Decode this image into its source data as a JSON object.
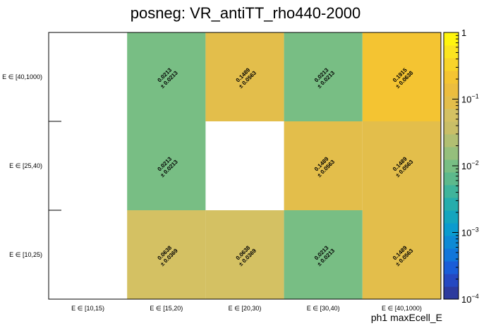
{
  "chart_data": {
    "type": "heatmap",
    "title": "posneg: VR_antiTT_rho440-2000",
    "xlabel": "ph1 maxEcell_E",
    "ylabel": "",
    "x_categories": [
      "E ∈ [10,15)",
      "E ∈ [15,20)",
      "E ∈ [20,30)",
      "E ∈ [30,40)",
      "E ∈ [40,1000)"
    ],
    "y_categories": [
      "E ∈ [10,25)",
      "E ∈ [25,40)",
      "E ∈ [40,1000)"
    ],
    "z_scale": "log",
    "zlim": [
      0.0001,
      1
    ],
    "z_ticks": [
      {
        "value": 1,
        "base": "1",
        "exp": ""
      },
      {
        "value": 0.1,
        "base": "10",
        "exp": "−1"
      },
      {
        "value": 0.01,
        "base": "10",
        "exp": "−2"
      },
      {
        "value": 0.001,
        "base": "10",
        "exp": "−3"
      },
      {
        "value": 0.0001,
        "base": "10",
        "exp": "−4"
      }
    ],
    "cells": [
      {
        "x": 1,
        "y": 0,
        "value": 0.0638,
        "label": "0.0638",
        "error": "± 0.0369"
      },
      {
        "x": 2,
        "y": 0,
        "value": 0.0638,
        "label": "0.0638",
        "error": "± 0.0369"
      },
      {
        "x": 3,
        "y": 0,
        "value": 0.0213,
        "label": "0.0213",
        "error": "± 0.0213"
      },
      {
        "x": 4,
        "y": 0,
        "value": 0.1489,
        "label": "0.1489",
        "error": "± 0.0563"
      },
      {
        "x": 1,
        "y": 1,
        "value": 0.0213,
        "label": "0.0213",
        "error": "± 0.0213"
      },
      {
        "x": 3,
        "y": 1,
        "value": 0.1489,
        "label": "0.1489",
        "error": "± 0.0563"
      },
      {
        "x": 4,
        "y": 1,
        "value": 0.1489,
        "label": "0.1489",
        "error": "± 0.0563"
      },
      {
        "x": 1,
        "y": 2,
        "value": 0.0213,
        "label": "0.0213",
        "error": "± 0.0213"
      },
      {
        "x": 2,
        "y": 2,
        "value": 0.1489,
        "label": "0.1489",
        "error": "± 0.0563"
      },
      {
        "x": 3,
        "y": 2,
        "value": 0.0213,
        "label": "0.0213",
        "error": "± 0.0213"
      },
      {
        "x": 4,
        "y": 2,
        "value": 0.1915,
        "label": "0.1915",
        "error": "± 0.0638"
      }
    ],
    "colors": {
      "low": "#78be84",
      "mid": "#d4c163",
      "mid_high": "#e3be4b",
      "high": "#f4c432"
    },
    "palette": [
      "#2c3a9e",
      "#2548c1",
      "#1a5dd8",
      "#1176db",
      "#0e8ad5",
      "#0b9bce",
      "#14a5be",
      "#26adac",
      "#3fb49b",
      "#5db98c",
      "#78be84",
      "#95bf7c",
      "#b1bf72",
      "#c9be67",
      "#d4c163",
      "#e3be4b",
      "#ecbd3e",
      "#f4c432",
      "#f8d42a",
      "#fbe420",
      "#fff50e"
    ]
  }
}
